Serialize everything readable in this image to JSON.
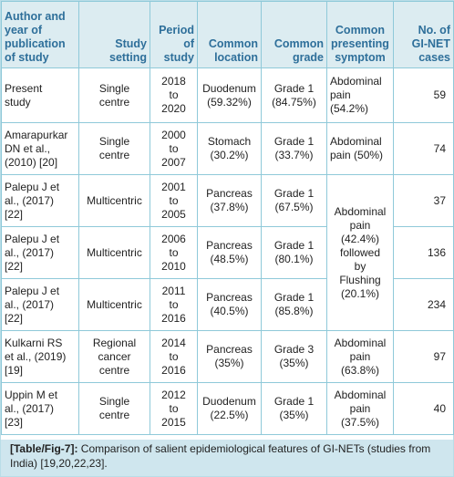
{
  "table": {
    "headers": [
      "Author and\nyear of\npublication\nof study",
      "Study\nsetting",
      "Period\nof\nstudy",
      "Common\nlocation",
      "Common\ngrade",
      "Common\npresenting\nsymptom",
      "No. of\nGI-NET\ncases"
    ],
    "rows": [
      {
        "author": "Present\nstudy",
        "setting": "Single\ncentre",
        "period": "2018\nto\n2020",
        "location": "Duodenum\n(59.32%)",
        "grade": "Grade 1\n(84.75%)",
        "symptom": "Abdominal\npain\n(54.2%)",
        "cases": "59"
      },
      {
        "author": "Amarapurkar\nDN et al.,\n(2010) [20]",
        "setting": "Single\ncentre",
        "period": "2000\nto\n2007",
        "location": "Stomach\n(30.2%)",
        "grade": "Grade 1\n(33.7%)",
        "symptom": "Abdominal\npain (50%)",
        "cases": "74"
      },
      {
        "author": "Palepu J et\nal., (2017)\n[22]",
        "setting": "Multicentric",
        "period": "2001\nto\n2005",
        "location": "Pancreas\n(37.8%)",
        "grade": "Grade 1\n(67.5%)",
        "cases": "37"
      },
      {
        "author": "Palepu J et\nal., (2017)\n[22]",
        "setting": "Multicentric",
        "period": "2006\nto\n2010",
        "location": "Pancreas\n(48.5%)",
        "grade": "Grade 1\n(80.1%)",
        "cases": "136"
      },
      {
        "author": "Palepu J et\nal., (2017)\n[22]",
        "setting": "Multicentric",
        "period": "2011\nto\n2016",
        "location": "Pancreas\n(40.5%)",
        "grade": "Grade 1\n(85.8%)",
        "cases": "234"
      },
      {
        "author": "Kulkarni RS\net al., (2019)\n[19]",
        "setting": "Regional\ncancer\ncentre",
        "period": "2014\nto\n2016",
        "location": "Pancreas\n(35%)",
        "grade": "Grade 3\n(35%)",
        "symptom": "Abdominal\npain\n(63.8%)",
        "cases": "97"
      },
      {
        "author": "Uppin M et\nal., (2017)\n[23]",
        "setting": "Single\ncentre",
        "period": "2012\nto\n2015",
        "location": "Duodenum\n(22.5%)",
        "grade": "Grade 1\n(35%)",
        "symptom": "Abdominal\npain\n(37.5%)",
        "cases": "40"
      }
    ],
    "merged_symptom": "Abdominal\npain\n(42.4%)\nfollowed\nby\nFlushing\n(20.1%)"
  },
  "caption": {
    "tag": "[Table/Fig-7]:",
    "text": " Comparison of salient epidemiological features of GI-NETs (studies from India) [19,20,22,23]."
  }
}
